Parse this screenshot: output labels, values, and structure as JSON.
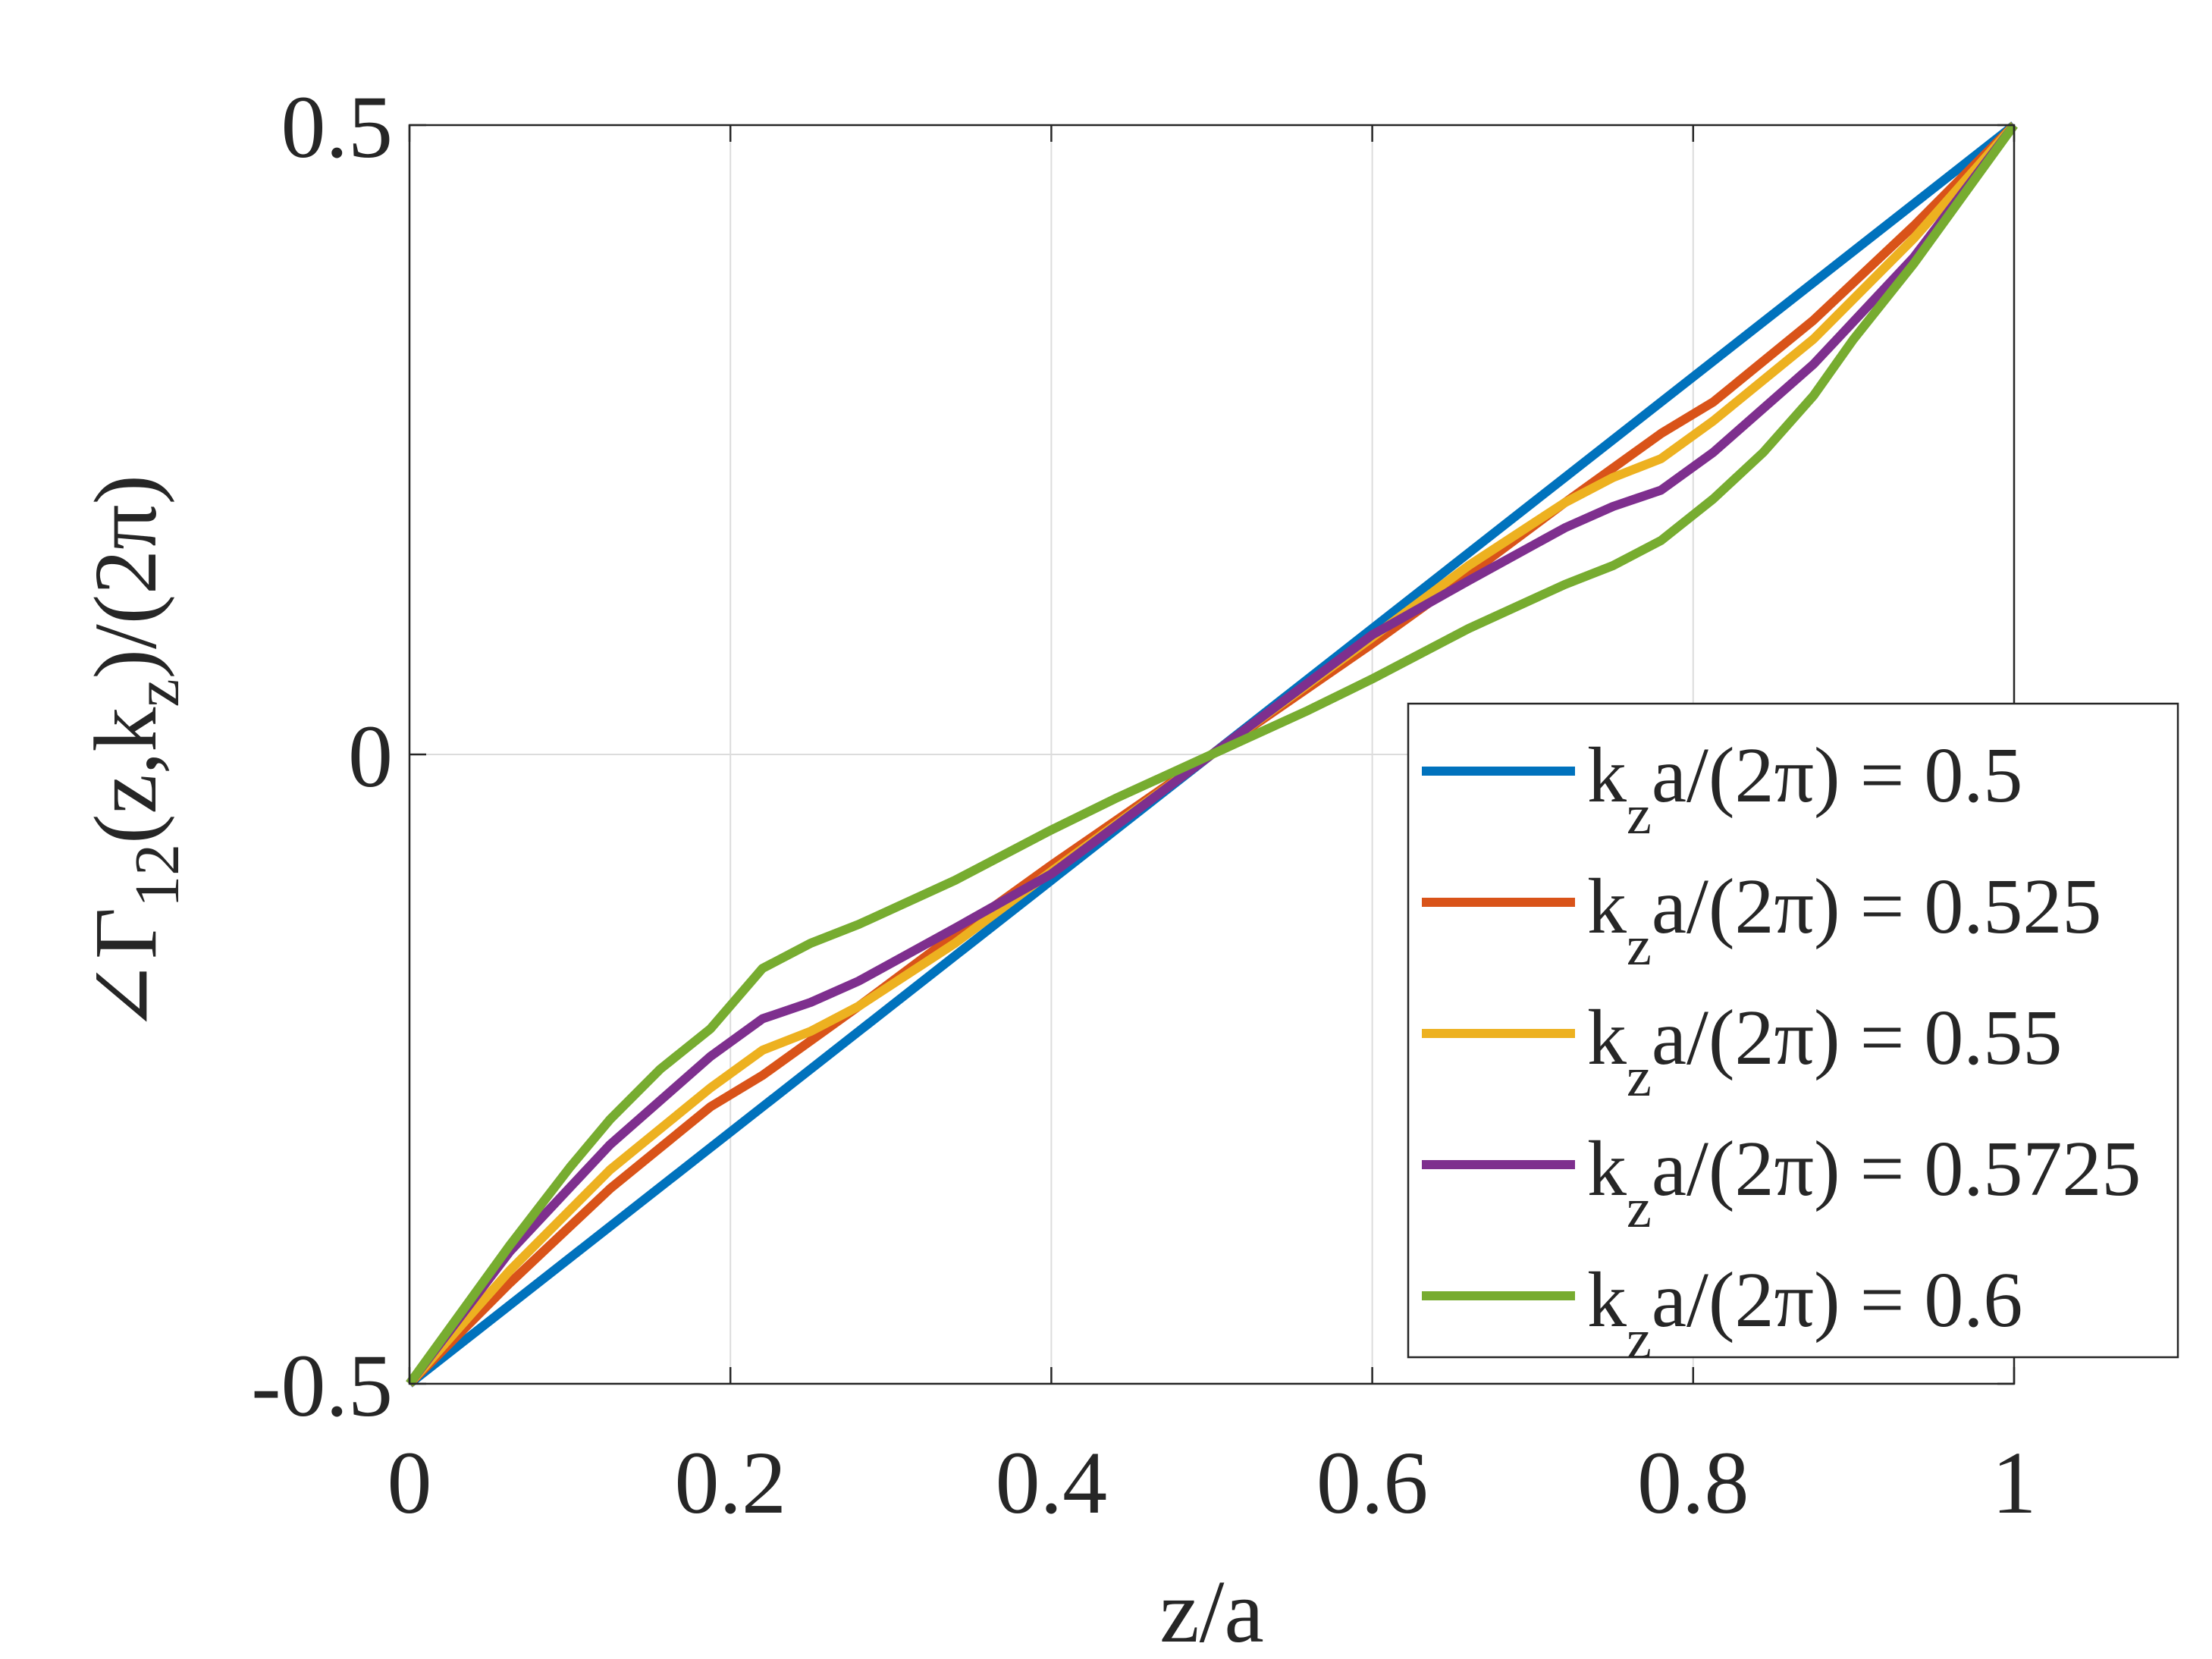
{
  "chart_data": {
    "type": "line",
    "title": "",
    "xlabel": "z/a",
    "ylabel": {
      "prefix": "∠Γ",
      "sub1": "12",
      "mid": "(z,k",
      "sub2": "z",
      "suffix": ")/(2π)"
    },
    "xlim": [
      0,
      1
    ],
    "ylim": [
      -0.5,
      0.5
    ],
    "xticks": [
      0,
      0.2,
      0.4,
      0.6,
      0.8,
      1
    ],
    "xtick_labels": [
      "0",
      "0.2",
      "0.4",
      "0.6",
      "0.8",
      "1"
    ],
    "yticks": [
      -0.5,
      0,
      0.5
    ],
    "ytick_labels": [
      "-0.5",
      "0",
      "0.5"
    ],
    "grid": true,
    "legend_position": "right",
    "series": [
      {
        "label_pre": "k",
        "label_sub": "z",
        "label_post": "a/(2π) = 0.5",
        "color": "#0072BD",
        "x": [
          0,
          0.1,
          0.2,
          0.3,
          0.4,
          0.5,
          0.6,
          0.7,
          0.8,
          0.9,
          1
        ],
        "y": [
          -0.5,
          -0.4,
          -0.3,
          -0.2,
          -0.1,
          0,
          0.1,
          0.2,
          0.3,
          0.4,
          0.5
        ]
      },
      {
        "label_pre": "k",
        "label_sub": "z",
        "label_post": "a/(2π) = 0.525",
        "color": "#D95319",
        "x": [
          0,
          0.0625,
          0.125,
          0.1875,
          0.22,
          0.28,
          0.34,
          0.4,
          0.5,
          0.6,
          0.66,
          0.72,
          0.78,
          0.8125,
          0.875,
          0.9375,
          1
        ],
        "y": [
          -0.5,
          -0.42,
          -0.345,
          -0.28,
          -0.255,
          -0.2,
          -0.143,
          -0.088,
          0,
          0.088,
          0.143,
          0.2,
          0.255,
          0.28,
          0.345,
          0.42,
          0.5
        ]
      },
      {
        "label_pre": "k",
        "label_sub": "z",
        "label_post": "a/(2π) = 0.55",
        "color": "#EDB120",
        "x": [
          0,
          0.0625,
          0.125,
          0.1875,
          0.22,
          0.25,
          0.28,
          0.34,
          0.4,
          0.5,
          0.6,
          0.66,
          0.72,
          0.75,
          0.78,
          0.8125,
          0.875,
          0.9375,
          1
        ],
        "y": [
          -0.5,
          -0.41,
          -0.33,
          -0.265,
          -0.235,
          -0.22,
          -0.2,
          -0.15,
          -0.093,
          0,
          0.093,
          0.15,
          0.2,
          0.22,
          0.235,
          0.265,
          0.33,
          0.41,
          0.5
        ]
      },
      {
        "label_pre": "k",
        "label_sub": "z",
        "label_post": "a/(2π) = 0.5725",
        "color": "#7E2F8E",
        "x": [
          0,
          0.0625,
          0.125,
          0.1875,
          0.22,
          0.25,
          0.28,
          0.34,
          0.4,
          0.5,
          0.6,
          0.66,
          0.72,
          0.75,
          0.78,
          0.8125,
          0.875,
          0.9375,
          1
        ],
        "y": [
          -0.5,
          -0.395,
          -0.31,
          -0.24,
          -0.21,
          -0.197,
          -0.18,
          -0.138,
          -0.095,
          0,
          0.095,
          0.138,
          0.18,
          0.197,
          0.21,
          0.24,
          0.31,
          0.395,
          0.5
        ]
      },
      {
        "label_pre": "k",
        "label_sub": "z",
        "label_post": "a/(2π) = 0.6",
        "color": "#77AC30",
        "x": [
          0,
          0.0625,
          0.1,
          0.125,
          0.1563,
          0.1875,
          0.22,
          0.25,
          0.28,
          0.34,
          0.4,
          0.44,
          0.5,
          0.56,
          0.6,
          0.66,
          0.72,
          0.75,
          0.78,
          0.8125,
          0.8437,
          0.875,
          0.9,
          0.9375,
          1
        ],
        "y": [
          -0.5,
          -0.39,
          -0.328,
          -0.29,
          -0.25,
          -0.218,
          -0.17,
          -0.15,
          -0.135,
          -0.1,
          -0.06,
          -0.035,
          0,
          0.035,
          0.06,
          0.1,
          0.135,
          0.15,
          0.17,
          0.203,
          0.24,
          0.285,
          0.33,
          0.39,
          0.5
        ]
      }
    ]
  }
}
